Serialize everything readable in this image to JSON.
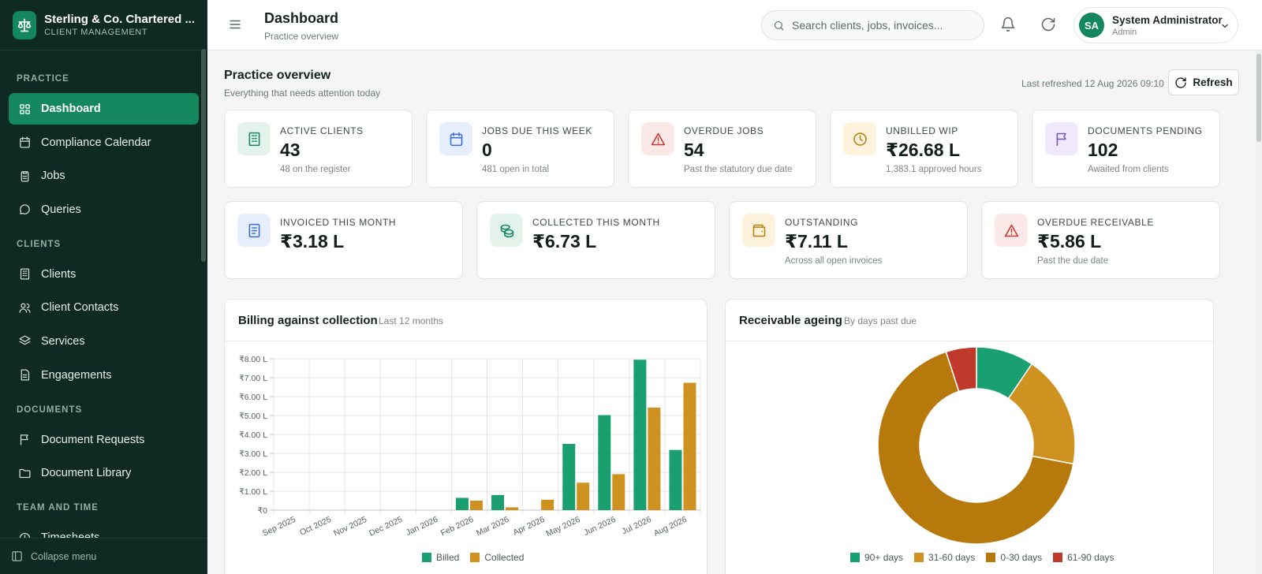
{
  "brand": {
    "name": "Sterling & Co. Chartered ...",
    "subtitle": "CLIENT MANAGEMENT"
  },
  "sidebar": {
    "sections": [
      {
        "title": "PRACTICE",
        "items": [
          {
            "label": "Dashboard",
            "icon": "grid-icon",
            "active": true
          },
          {
            "label": "Compliance Calendar",
            "icon": "calendar-icon"
          },
          {
            "label": "Jobs",
            "icon": "clipboard-icon"
          },
          {
            "label": "Queries",
            "icon": "chat-icon"
          }
        ]
      },
      {
        "title": "CLIENTS",
        "items": [
          {
            "label": "Clients",
            "icon": "building-icon"
          },
          {
            "label": "Client Contacts",
            "icon": "users-icon"
          },
          {
            "label": "Services",
            "icon": "layers-icon"
          },
          {
            "label": "Engagements",
            "icon": "document-icon"
          }
        ]
      },
      {
        "title": "DOCUMENTS",
        "items": [
          {
            "label": "Document Requests",
            "icon": "flag-icon"
          },
          {
            "label": "Document Library",
            "icon": "folder-icon"
          }
        ]
      },
      {
        "title": "TEAM AND TIME",
        "items": [
          {
            "label": "Timesheets",
            "icon": "clock-icon"
          }
        ]
      }
    ],
    "collapse_label": "Collapse menu"
  },
  "header": {
    "title": "Dashboard",
    "subtitle": "Practice overview",
    "search_placeholder": "Search clients, jobs, invoices...",
    "user": {
      "initials": "SA",
      "name": "System Administrator",
      "role": "Admin"
    }
  },
  "overview": {
    "title": "Practice overview",
    "subtitle": "Everything that needs attention today",
    "last_refreshed": "Last refreshed 12 Aug 2026 09:10",
    "refresh_label": "Refresh"
  },
  "kpis_row1": [
    {
      "label": "ACTIVE CLIENTS",
      "value": "43",
      "sub": "48 on the register",
      "icon": "building-icon",
      "color": "#15875f",
      "bg": "#e3f3ec"
    },
    {
      "label": "JOBS DUE THIS WEEK",
      "value": "0",
      "sub": "481 open in total",
      "icon": "calendar-icon",
      "color": "#3b6fd6",
      "bg": "#e6eefc"
    },
    {
      "label": "OVERDUE JOBS",
      "value": "54",
      "sub": "Past the statutory due date",
      "icon": "alert-icon",
      "color": "#c73a32",
      "bg": "#fbe9e8"
    },
    {
      "label": "UNBILLED WIP",
      "value": "₹26.68 L",
      "sub": "1,383.1 approved hours",
      "icon": "clock-icon",
      "color": "#b7800f",
      "bg": "#fdf2dc"
    },
    {
      "label": "DOCUMENTS PENDING",
      "value": "102",
      "sub": "Awaited from clients",
      "icon": "flag-icon",
      "color": "#7a55c4",
      "bg": "#efe9fb"
    }
  ],
  "kpis_row2": [
    {
      "label": "INVOICED THIS MONTH",
      "value": "₹3.18 L",
      "sub": "",
      "icon": "receipt-icon",
      "color": "#3b6fd6",
      "bg": "#e6eefc"
    },
    {
      "label": "COLLECTED THIS MONTH",
      "value": "₹6.73 L",
      "sub": "",
      "icon": "coins-icon",
      "color": "#15875f",
      "bg": "#e3f3ec"
    },
    {
      "label": "OUTSTANDING",
      "value": "₹7.11 L",
      "sub": "Across all open invoices",
      "icon": "wallet-icon",
      "color": "#b7800f",
      "bg": "#fdf2dc"
    },
    {
      "label": "OVERDUE RECEIVABLE",
      "value": "₹5.86 L",
      "sub": "Past the due date",
      "icon": "alert-icon",
      "color": "#c73a32",
      "bg": "#fbe9e8"
    }
  ],
  "billing_panel": {
    "title": "Billing against collection",
    "subtitle": "Last 12 months"
  },
  "ageing_panel": {
    "title": "Receivable ageing",
    "subtitle": "By days past due"
  },
  "chart_data": [
    {
      "type": "bar",
      "categories": [
        "Sep 2025",
        "Oct 2025",
        "Nov 2025",
        "Dec 2025",
        "Jan 2026",
        "Feb 2026",
        "Mar 2026",
        "Apr 2026",
        "May 2026",
        "Jun 2026",
        "Jul 2026",
        "Aug 2026"
      ],
      "series": [
        {
          "name": "Billed",
          "color": "#1aa070",
          "values": [
            0,
            0,
            0,
            0,
            0,
            0.65,
            0.8,
            0,
            3.5,
            5.02,
            7.95,
            3.18
          ]
        },
        {
          "name": "Collected",
          "color": "#cf9220",
          "values": [
            0,
            0,
            0,
            0,
            0,
            0.5,
            0.15,
            0.55,
            1.45,
            1.9,
            5.42,
            6.73
          ]
        }
      ],
      "yticks": [
        "₹0",
        "₹1.00 L",
        "₹2.00 L",
        "₹3.00 L",
        "₹4.00 L",
        "₹5.00 L",
        "₹6.00 L",
        "₹7.00 L",
        "₹8.00 L"
      ],
      "ylim": [
        0,
        8
      ],
      "grid": true,
      "legend": "bottom"
    },
    {
      "type": "pie",
      "style": "donut",
      "series": [
        {
          "name": "90+ days",
          "color": "#1aa070",
          "value": 0.095
        },
        {
          "name": "31-60 days",
          "color": "#cf9220",
          "value": 0.185
        },
        {
          "name": "0-30 days",
          "color": "#b7780c",
          "value": 0.67
        },
        {
          "name": "61-90 days",
          "color": "#c0392b",
          "value": 0.05
        }
      ],
      "legend": "bottom"
    }
  ]
}
